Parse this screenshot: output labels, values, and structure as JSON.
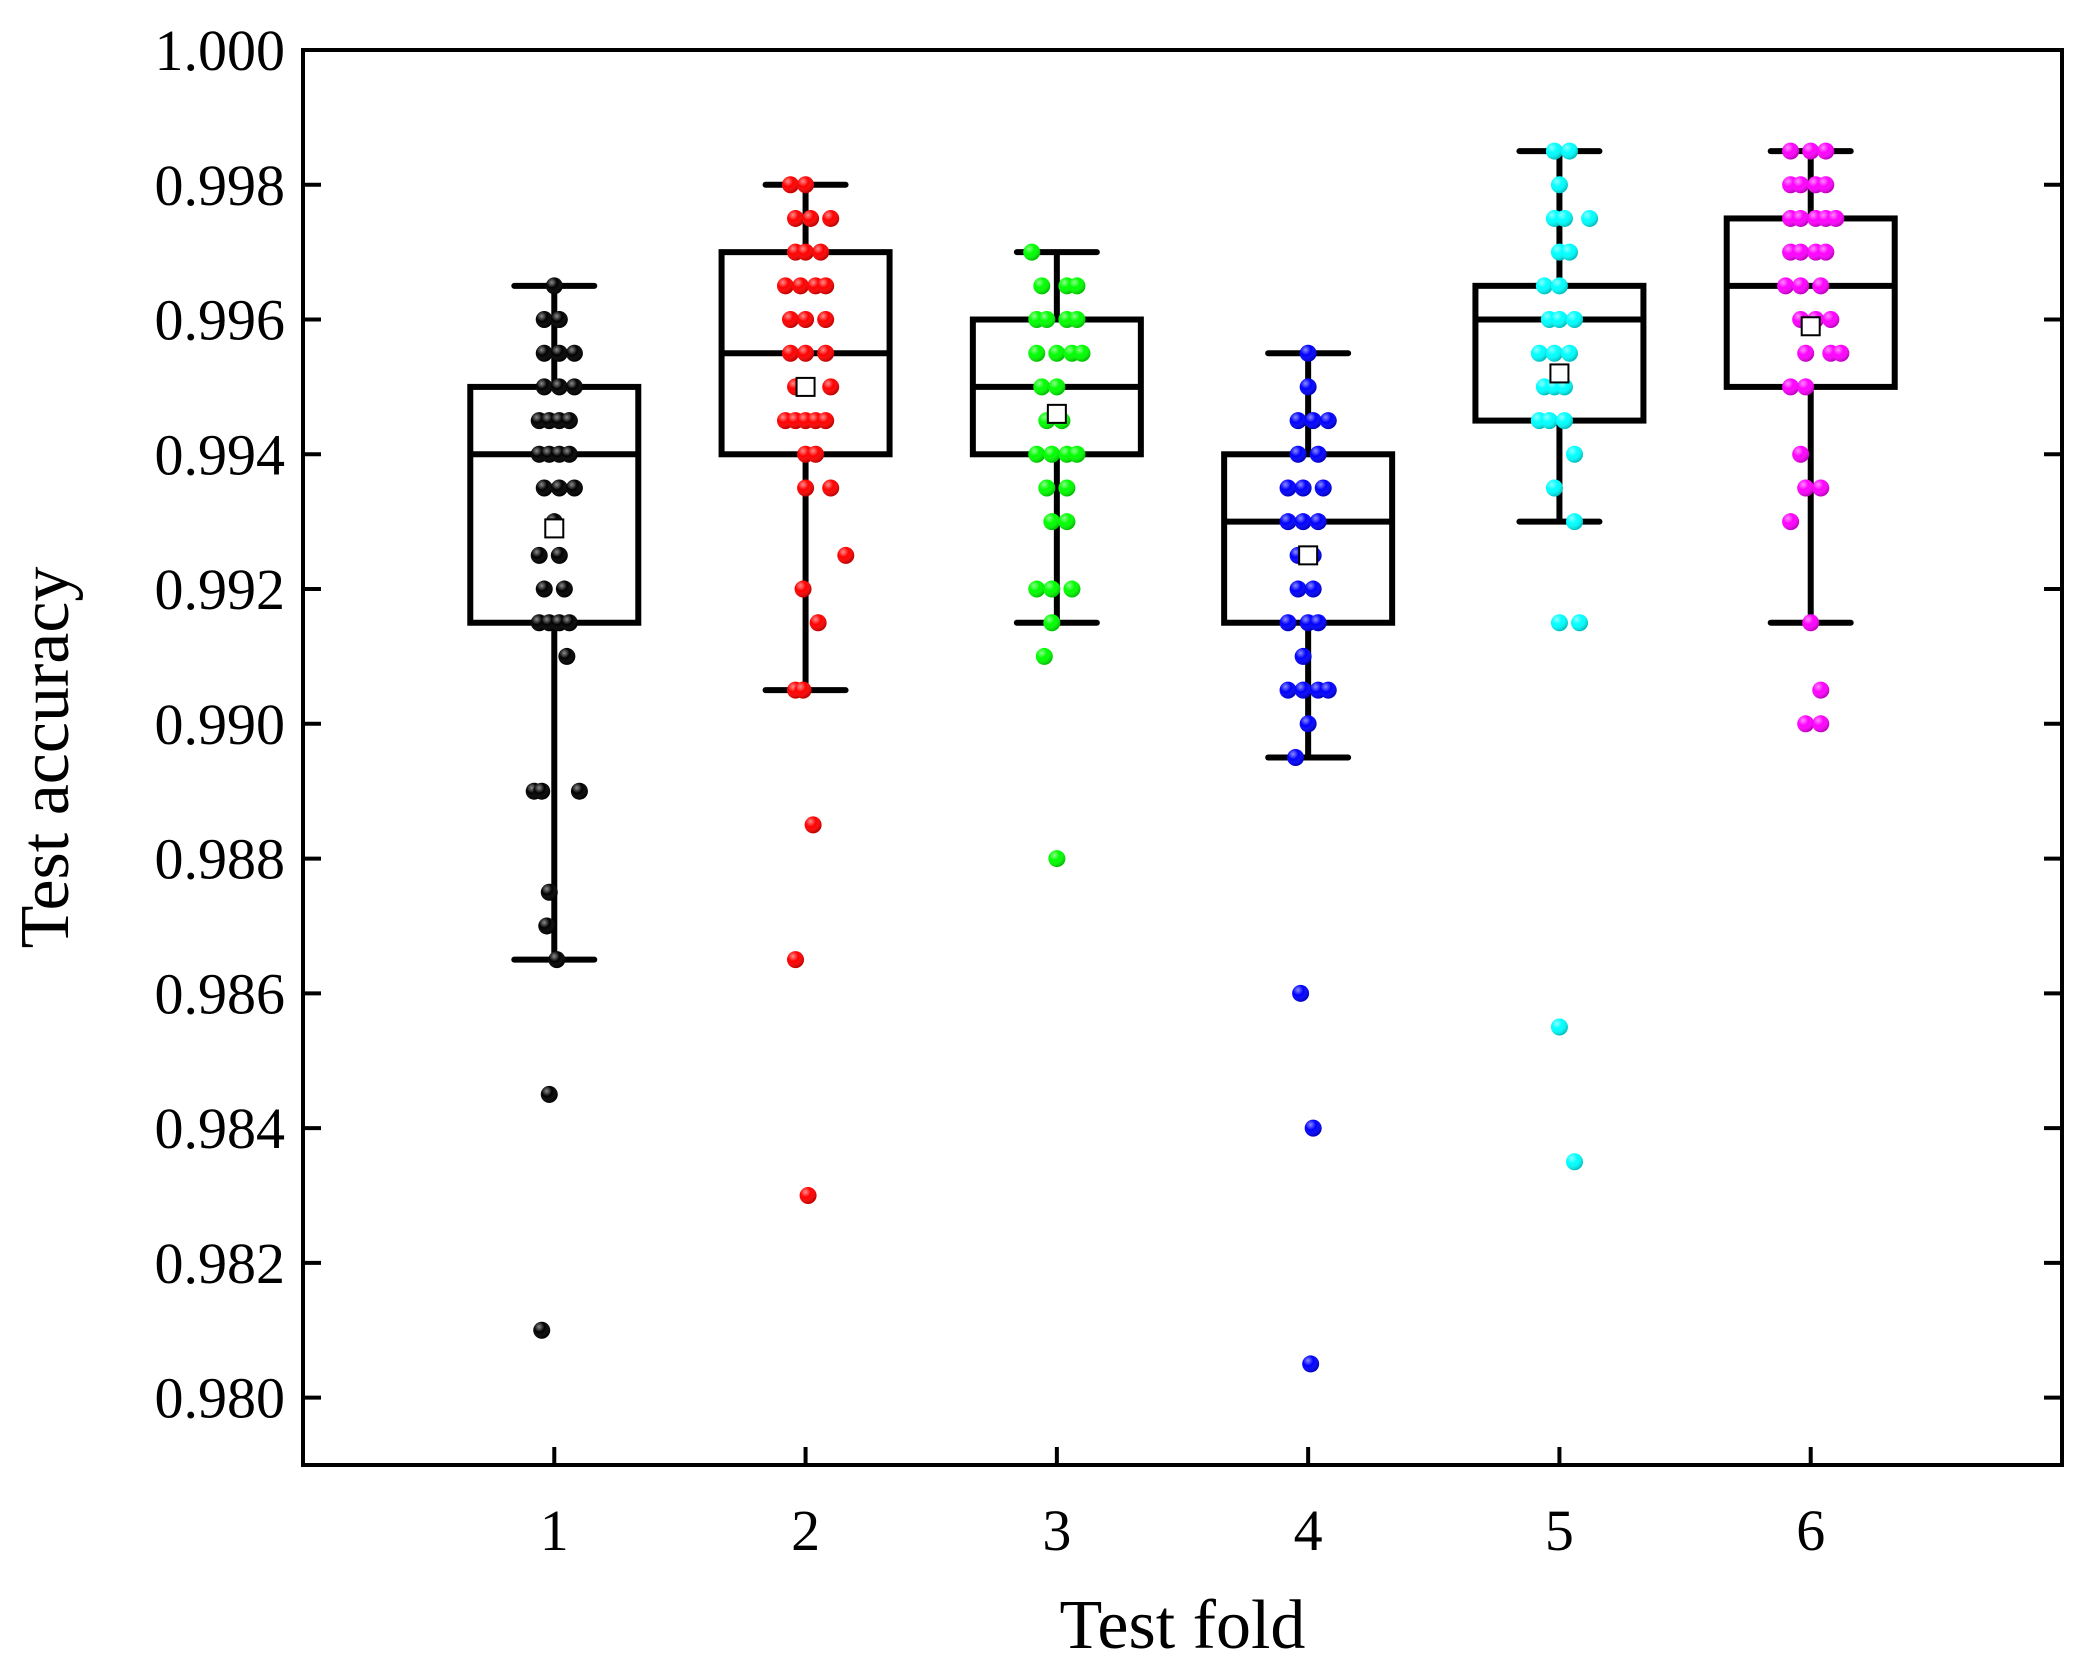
{
  "chart_data": {
    "type": "box",
    "title": "",
    "xlabel": "Test fold",
    "ylabel": "Test accuracy",
    "categories": [
      "1",
      "2",
      "3",
      "4",
      "5",
      "6"
    ],
    "ylim": [
      0.979,
      1.0
    ],
    "xlim": [
      0,
      7
    ],
    "yticks": [
      0.98,
      0.982,
      0.984,
      0.986,
      0.988,
      0.99,
      0.992,
      0.994,
      0.996,
      0.998,
      1.0
    ],
    "ytick_labels": [
      "0.980",
      "0.982",
      "0.984",
      "0.986",
      "0.988",
      "0.990",
      "0.992",
      "0.994",
      "0.996",
      "0.998",
      "1.000"
    ],
    "xticks": [
      1,
      2,
      3,
      4,
      5,
      6
    ],
    "xtick_labels": [
      "1",
      "2",
      "3",
      "4",
      "5",
      "6"
    ],
    "grid": false,
    "legend": "none",
    "series": [
      {
        "name": "1",
        "color": "#000000",
        "box": {
          "q1": 0.9915,
          "median": 0.994,
          "q3": 0.995,
          "whisker_low": 0.9865,
          "whisker_high": 0.9965,
          "mean": 0.9929
        },
        "points": [
          {
            "x": 1.0,
            "y": 0.9965
          },
          {
            "x": 0.96,
            "y": 0.996
          },
          {
            "x": 1.02,
            "y": 0.996
          },
          {
            "x": 0.96,
            "y": 0.9955
          },
          {
            "x": 1.02,
            "y": 0.9955
          },
          {
            "x": 1.08,
            "y": 0.9955
          },
          {
            "x": 0.96,
            "y": 0.995
          },
          {
            "x": 1.02,
            "y": 0.995
          },
          {
            "x": 1.08,
            "y": 0.995
          },
          {
            "x": 0.94,
            "y": 0.9945
          },
          {
            "x": 0.98,
            "y": 0.9945
          },
          {
            "x": 1.02,
            "y": 0.9945
          },
          {
            "x": 1.06,
            "y": 0.9945
          },
          {
            "x": 0.94,
            "y": 0.994
          },
          {
            "x": 0.98,
            "y": 0.994
          },
          {
            "x": 1.02,
            "y": 0.994
          },
          {
            "x": 1.06,
            "y": 0.994
          },
          {
            "x": 0.96,
            "y": 0.9935
          },
          {
            "x": 1.02,
            "y": 0.9935
          },
          {
            "x": 1.08,
            "y": 0.9935
          },
          {
            "x": 1.0,
            "y": 0.993
          },
          {
            "x": 0.94,
            "y": 0.9925
          },
          {
            "x": 1.02,
            "y": 0.9925
          },
          {
            "x": 0.96,
            "y": 0.992
          },
          {
            "x": 1.04,
            "y": 0.992
          },
          {
            "x": 0.94,
            "y": 0.9915
          },
          {
            "x": 0.98,
            "y": 0.9915
          },
          {
            "x": 1.02,
            "y": 0.9915
          },
          {
            "x": 1.06,
            "y": 0.9915
          },
          {
            "x": 1.05,
            "y": 0.991
          },
          {
            "x": 0.92,
            "y": 0.989
          },
          {
            "x": 0.95,
            "y": 0.989
          },
          {
            "x": 1.1,
            "y": 0.989
          },
          {
            "x": 0.98,
            "y": 0.9875
          },
          {
            "x": 0.97,
            "y": 0.987
          },
          {
            "x": 1.01,
            "y": 0.9865
          },
          {
            "x": 0.98,
            "y": 0.9845
          },
          {
            "x": 0.95,
            "y": 0.981
          }
        ]
      },
      {
        "name": "2",
        "color": "#ff0000",
        "box": {
          "q1": 0.994,
          "median": 0.9955,
          "q3": 0.997,
          "whisker_low": 0.9905,
          "whisker_high": 0.998,
          "mean": 0.995
        },
        "points": [
          {
            "x": 1.94,
            "y": 0.998
          },
          {
            "x": 2.0,
            "y": 0.998
          },
          {
            "x": 1.96,
            "y": 0.9975
          },
          {
            "x": 2.02,
            "y": 0.9975
          },
          {
            "x": 2.1,
            "y": 0.9975
          },
          {
            "x": 1.96,
            "y": 0.997
          },
          {
            "x": 2.0,
            "y": 0.997
          },
          {
            "x": 2.06,
            "y": 0.997
          },
          {
            "x": 1.92,
            "y": 0.9965
          },
          {
            "x": 1.98,
            "y": 0.9965
          },
          {
            "x": 2.04,
            "y": 0.9965
          },
          {
            "x": 2.08,
            "y": 0.9965
          },
          {
            "x": 1.94,
            "y": 0.996
          },
          {
            "x": 2.0,
            "y": 0.996
          },
          {
            "x": 2.08,
            "y": 0.996
          },
          {
            "x": 1.94,
            "y": 0.9955
          },
          {
            "x": 2.0,
            "y": 0.9955
          },
          {
            "x": 2.08,
            "y": 0.9955
          },
          {
            "x": 1.96,
            "y": 0.995
          },
          {
            "x": 2.1,
            "y": 0.995
          },
          {
            "x": 1.92,
            "y": 0.9945
          },
          {
            "x": 1.96,
            "y": 0.9945
          },
          {
            "x": 2.0,
            "y": 0.9945
          },
          {
            "x": 2.04,
            "y": 0.9945
          },
          {
            "x": 2.08,
            "y": 0.9945
          },
          {
            "x": 2.0,
            "y": 0.994
          },
          {
            "x": 2.04,
            "y": 0.994
          },
          {
            "x": 2.0,
            "y": 0.9935
          },
          {
            "x": 2.1,
            "y": 0.9935
          },
          {
            "x": 2.16,
            "y": 0.9925
          },
          {
            "x": 1.99,
            "y": 0.992
          },
          {
            "x": 2.05,
            "y": 0.9915
          },
          {
            "x": 1.96,
            "y": 0.9905
          },
          {
            "x": 1.99,
            "y": 0.9905
          },
          {
            "x": 2.03,
            "y": 0.9885
          },
          {
            "x": 1.96,
            "y": 0.9865
          },
          {
            "x": 2.01,
            "y": 0.983
          }
        ]
      },
      {
        "name": "3",
        "color": "#00ff00",
        "box": {
          "q1": 0.994,
          "median": 0.995,
          "q3": 0.996,
          "whisker_low": 0.9915,
          "whisker_high": 0.997,
          "mean": 0.9946
        },
        "points": [
          {
            "x": 2.9,
            "y": 0.997
          },
          {
            "x": 2.94,
            "y": 0.9965
          },
          {
            "x": 3.04,
            "y": 0.9965
          },
          {
            "x": 3.08,
            "y": 0.9965
          },
          {
            "x": 2.92,
            "y": 0.996
          },
          {
            "x": 2.96,
            "y": 0.996
          },
          {
            "x": 3.04,
            "y": 0.996
          },
          {
            "x": 3.08,
            "y": 0.996
          },
          {
            "x": 2.92,
            "y": 0.9955
          },
          {
            "x": 3.0,
            "y": 0.9955
          },
          {
            "x": 3.06,
            "y": 0.9955
          },
          {
            "x": 3.1,
            "y": 0.9955
          },
          {
            "x": 2.94,
            "y": 0.995
          },
          {
            "x": 3.0,
            "y": 0.995
          },
          {
            "x": 2.96,
            "y": 0.9945
          },
          {
            "x": 3.02,
            "y": 0.9945
          },
          {
            "x": 2.92,
            "y": 0.994
          },
          {
            "x": 2.98,
            "y": 0.994
          },
          {
            "x": 3.04,
            "y": 0.994
          },
          {
            "x": 3.08,
            "y": 0.994
          },
          {
            "x": 2.96,
            "y": 0.9935
          },
          {
            "x": 3.04,
            "y": 0.9935
          },
          {
            "x": 2.98,
            "y": 0.993
          },
          {
            "x": 3.04,
            "y": 0.993
          },
          {
            "x": 2.92,
            "y": 0.992
          },
          {
            "x": 2.98,
            "y": 0.992
          },
          {
            "x": 3.06,
            "y": 0.992
          },
          {
            "x": 2.98,
            "y": 0.9915
          },
          {
            "x": 2.95,
            "y": 0.991
          },
          {
            "x": 3.0,
            "y": 0.988
          }
        ]
      },
      {
        "name": "4",
        "color": "#0000ff",
        "box": {
          "q1": 0.9915,
          "median": 0.993,
          "q3": 0.994,
          "whisker_low": 0.9895,
          "whisker_high": 0.9955,
          "mean": 0.9925
        },
        "points": [
          {
            "x": 4.0,
            "y": 0.9955
          },
          {
            "x": 4.0,
            "y": 0.995
          },
          {
            "x": 3.96,
            "y": 0.9945
          },
          {
            "x": 4.02,
            "y": 0.9945
          },
          {
            "x": 4.08,
            "y": 0.9945
          },
          {
            "x": 3.96,
            "y": 0.994
          },
          {
            "x": 4.04,
            "y": 0.994
          },
          {
            "x": 3.92,
            "y": 0.9935
          },
          {
            "x": 3.98,
            "y": 0.9935
          },
          {
            "x": 4.06,
            "y": 0.9935
          },
          {
            "x": 3.92,
            "y": 0.993
          },
          {
            "x": 3.98,
            "y": 0.993
          },
          {
            "x": 4.04,
            "y": 0.993
          },
          {
            "x": 3.96,
            "y": 0.9925
          },
          {
            "x": 4.02,
            "y": 0.9925
          },
          {
            "x": 3.96,
            "y": 0.992
          },
          {
            "x": 4.02,
            "y": 0.992
          },
          {
            "x": 3.92,
            "y": 0.9915
          },
          {
            "x": 4.0,
            "y": 0.9915
          },
          {
            "x": 4.04,
            "y": 0.9915
          },
          {
            "x": 3.98,
            "y": 0.991
          },
          {
            "x": 3.92,
            "y": 0.9905
          },
          {
            "x": 3.98,
            "y": 0.9905
          },
          {
            "x": 4.04,
            "y": 0.9905
          },
          {
            "x": 4.08,
            "y": 0.9905
          },
          {
            "x": 4.0,
            "y": 0.99
          },
          {
            "x": 3.95,
            "y": 0.9895
          },
          {
            "x": 3.97,
            "y": 0.986
          },
          {
            "x": 4.02,
            "y": 0.984
          },
          {
            "x": 4.01,
            "y": 0.9805
          }
        ]
      },
      {
        "name": "5",
        "color": "#00ffff",
        "box": {
          "q1": 0.9945,
          "median": 0.996,
          "q3": 0.9965,
          "whisker_low": 0.993,
          "whisker_high": 0.9985,
          "mean": 0.9952
        },
        "points": [
          {
            "x": 4.98,
            "y": 0.9985
          },
          {
            "x": 5.04,
            "y": 0.9985
          },
          {
            "x": 5.0,
            "y": 0.998
          },
          {
            "x": 4.98,
            "y": 0.9975
          },
          {
            "x": 5.02,
            "y": 0.9975
          },
          {
            "x": 5.12,
            "y": 0.9975
          },
          {
            "x": 5.0,
            "y": 0.997
          },
          {
            "x": 5.04,
            "y": 0.997
          },
          {
            "x": 4.94,
            "y": 0.9965
          },
          {
            "x": 5.0,
            "y": 0.9965
          },
          {
            "x": 4.96,
            "y": 0.996
          },
          {
            "x": 5.0,
            "y": 0.996
          },
          {
            "x": 5.06,
            "y": 0.996
          },
          {
            "x": 4.92,
            "y": 0.9955
          },
          {
            "x": 4.98,
            "y": 0.9955
          },
          {
            "x": 5.04,
            "y": 0.9955
          },
          {
            "x": 4.94,
            "y": 0.995
          },
          {
            "x": 4.98,
            "y": 0.995
          },
          {
            "x": 5.02,
            "y": 0.995
          },
          {
            "x": 4.92,
            "y": 0.9945
          },
          {
            "x": 4.96,
            "y": 0.9945
          },
          {
            "x": 5.02,
            "y": 0.9945
          },
          {
            "x": 5.06,
            "y": 0.994
          },
          {
            "x": 4.98,
            "y": 0.9935
          },
          {
            "x": 5.06,
            "y": 0.993
          },
          {
            "x": 5.0,
            "y": 0.9915
          },
          {
            "x": 5.08,
            "y": 0.9915
          },
          {
            "x": 5.0,
            "y": 0.9855
          },
          {
            "x": 5.06,
            "y": 0.9835
          }
        ]
      },
      {
        "name": "6",
        "color": "#ff00ff",
        "box": {
          "q1": 0.995,
          "median": 0.9965,
          "q3": 0.9975,
          "whisker_low": 0.9915,
          "whisker_high": 0.9985,
          "mean": 0.9959
        },
        "points": [
          {
            "x": 5.92,
            "y": 0.9985
          },
          {
            "x": 6.0,
            "y": 0.9985
          },
          {
            "x": 6.06,
            "y": 0.9985
          },
          {
            "x": 5.92,
            "y": 0.998
          },
          {
            "x": 5.96,
            "y": 0.998
          },
          {
            "x": 6.02,
            "y": 0.998
          },
          {
            "x": 6.06,
            "y": 0.998
          },
          {
            "x": 5.92,
            "y": 0.9975
          },
          {
            "x": 5.96,
            "y": 0.9975
          },
          {
            "x": 6.02,
            "y": 0.9975
          },
          {
            "x": 6.06,
            "y": 0.9975
          },
          {
            "x": 6.1,
            "y": 0.9975
          },
          {
            "x": 5.92,
            "y": 0.997
          },
          {
            "x": 5.96,
            "y": 0.997
          },
          {
            "x": 6.02,
            "y": 0.997
          },
          {
            "x": 6.06,
            "y": 0.997
          },
          {
            "x": 5.9,
            "y": 0.9965
          },
          {
            "x": 5.96,
            "y": 0.9965
          },
          {
            "x": 6.04,
            "y": 0.9965
          },
          {
            "x": 5.96,
            "y": 0.996
          },
          {
            "x": 6.02,
            "y": 0.996
          },
          {
            "x": 6.08,
            "y": 0.996
          },
          {
            "x": 5.98,
            "y": 0.9955
          },
          {
            "x": 6.08,
            "y": 0.9955
          },
          {
            "x": 6.12,
            "y": 0.9955
          },
          {
            "x": 5.92,
            "y": 0.995
          },
          {
            "x": 5.98,
            "y": 0.995
          },
          {
            "x": 5.96,
            "y": 0.994
          },
          {
            "x": 5.98,
            "y": 0.9935
          },
          {
            "x": 6.04,
            "y": 0.9935
          },
          {
            "x": 5.92,
            "y": 0.993
          },
          {
            "x": 6.0,
            "y": 0.9915
          },
          {
            "x": 6.04,
            "y": 0.9905
          },
          {
            "x": 5.98,
            "y": 0.99
          },
          {
            "x": 6.04,
            "y": 0.99
          }
        ]
      }
    ]
  }
}
